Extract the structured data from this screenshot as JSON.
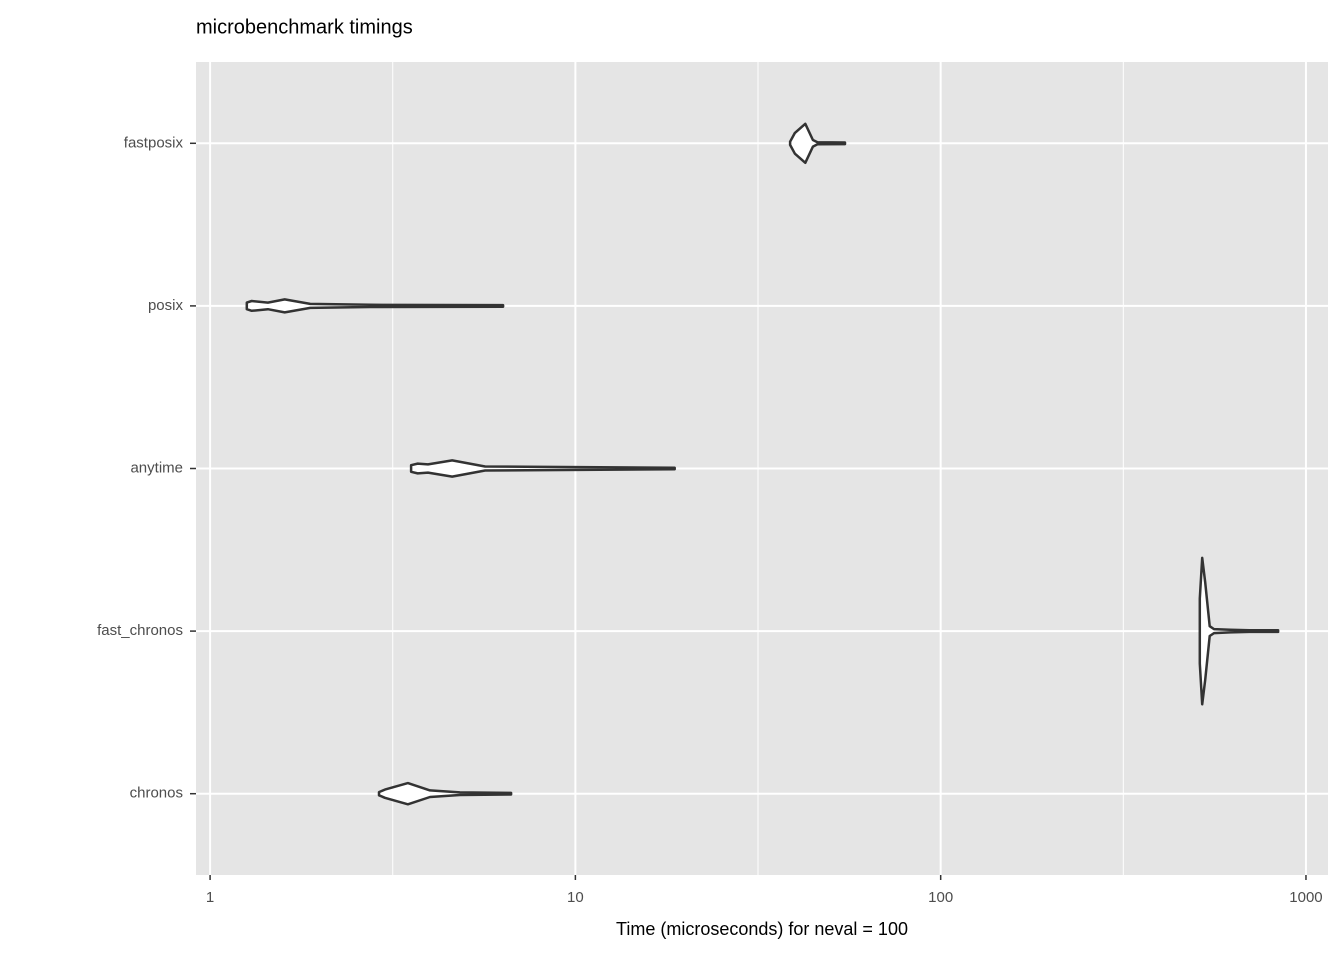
{
  "chart_data": {
    "type": "violin",
    "title": "microbenchmark timings",
    "xlabel": "Time (microseconds) for neval = 100",
    "categories": [
      "chronos",
      "fast_chronos",
      "anytime",
      "posix",
      "fastposix"
    ],
    "violins": [
      {
        "values": [
          2.9,
          3.01,
          3.48,
          4.0,
          4.83,
          6.67
        ],
        "widths": [
          0.01,
          0.025,
          0.065,
          0.02,
          0.008,
          0.005
        ]
      },
      {
        "values": [
          512,
          520,
          530,
          545,
          560,
          620,
          700,
          839
        ],
        "widths": [
          0.2,
          0.45,
          0.3,
          0.03,
          0.012,
          0.008,
          0.005,
          0.005
        ]
      },
      {
        "values": [
          3.55,
          3.7,
          3.95,
          4.6,
          5.66,
          18.7
        ],
        "widths": [
          0.02,
          0.03,
          0.025,
          0.05,
          0.012,
          0.005
        ]
      },
      {
        "values": [
          1.26,
          1.3,
          1.44,
          1.6,
          1.88,
          2.74,
          6.34
        ],
        "widths": [
          0.02,
          0.03,
          0.02,
          0.04,
          0.012,
          0.007,
          0.005
        ]
      },
      {
        "values": [
          38.7,
          39.9,
          42.6,
          44.7,
          46,
          54.7
        ],
        "widths": [
          0.01,
          0.064,
          0.12,
          0.02,
          0.006,
          0.005
        ]
      }
    ],
    "xlim": [
      0.915,
      1149
    ],
    "xticks": [
      1,
      10,
      100,
      1000
    ],
    "xscale": "log",
    "grid": true,
    "color": "#333333",
    "fill": "#ffffff"
  }
}
